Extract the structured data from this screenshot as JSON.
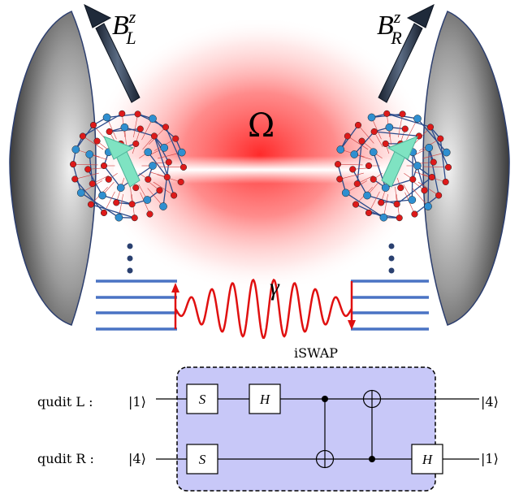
{
  "labels": {
    "field_left": {
      "main": "B",
      "sup": "z",
      "sub": "L"
    },
    "field_right": {
      "main": "B",
      "sup": "z",
      "sub": "R"
    },
    "rabi": "Ω",
    "decay": "γ"
  },
  "circuit": {
    "box_label": "iSWAP",
    "qudit_left": {
      "name": "qudit L :",
      "input_ket": "|1⟩",
      "output_ket": "|4⟩"
    },
    "qudit_right": {
      "name": "qudit R :",
      "input_ket": "|4⟩",
      "output_ket": "|1⟩"
    },
    "gates": {
      "s_top": "S",
      "h_top": "H",
      "s_bottom": "S",
      "h_bottom": "H"
    }
  },
  "colors": {
    "laser_glow": "#ff3b3b",
    "circuit_box": "#c8c8f8",
    "energy_levels": "#4a73c4",
    "photon": "#e01010",
    "spin_arrow": "#7fe3c2",
    "oxygen_atom": "#dd1a1a",
    "metal_atom": "#2f8fd0"
  }
}
